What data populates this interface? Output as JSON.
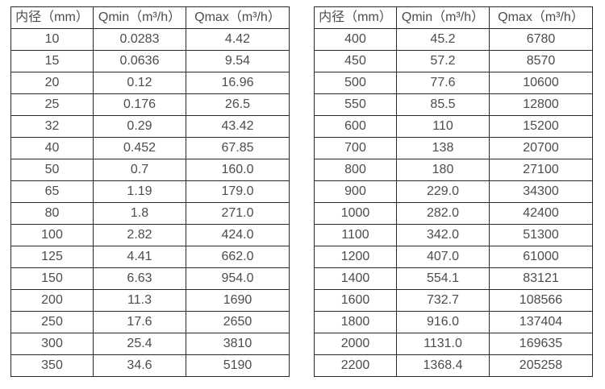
{
  "page": {
    "background": "#ffffff",
    "border_color": "#262626",
    "text_color": "#4c4c4c"
  },
  "tables": [
    {
      "headers": [
        "内径（mm）",
        "Qmin（m³/h）",
        "Qmax（m³/h）"
      ],
      "rows": [
        [
          "10",
          "0.0283",
          "4.42"
        ],
        [
          "15",
          "0.0636",
          "9.54"
        ],
        [
          "20",
          "0.12",
          "16.96"
        ],
        [
          "25",
          "0.176",
          "26.5"
        ],
        [
          "32",
          "0.29",
          "43.42"
        ],
        [
          "40",
          "0.452",
          "67.85"
        ],
        [
          "50",
          "0.7",
          "160.0"
        ],
        [
          "65",
          "1.19",
          "179.0"
        ],
        [
          "80",
          "1.8",
          "271.0"
        ],
        [
          "100",
          "2.82",
          "424.0"
        ],
        [
          "125",
          "4.41",
          "662.0"
        ],
        [
          "150",
          "6.63",
          "954.0"
        ],
        [
          "200",
          "11.3",
          "1690"
        ],
        [
          "250",
          "17.6",
          "2650"
        ],
        [
          "300",
          "25.4",
          "3810"
        ],
        [
          "350",
          "34.6",
          "5190"
        ]
      ]
    },
    {
      "headers": [
        "内径（mm）",
        "Qmin（m³/h）",
        "Qmax（m³/h）"
      ],
      "rows": [
        [
          "400",
          "45.2",
          "6780"
        ],
        [
          "450",
          "57.2",
          "8570"
        ],
        [
          "500",
          "77.6",
          "10600"
        ],
        [
          "550",
          "85.5",
          "12800"
        ],
        [
          "600",
          "110",
          "15200"
        ],
        [
          "700",
          "138",
          "20700"
        ],
        [
          "800",
          "180",
          "27100"
        ],
        [
          "900",
          "229.0",
          "34300"
        ],
        [
          "1000",
          "282.0",
          "42400"
        ],
        [
          "1100",
          "342.0",
          "51300"
        ],
        [
          "1200",
          "407.0",
          "61000"
        ],
        [
          "1400",
          "554.1",
          "83121"
        ],
        [
          "1600",
          "732.7",
          "108566"
        ],
        [
          "1800",
          "916.0",
          "137404"
        ],
        [
          "2000",
          "1131.0",
          "169635"
        ],
        [
          "2200",
          "1368.4",
          "205258"
        ]
      ]
    }
  ]
}
